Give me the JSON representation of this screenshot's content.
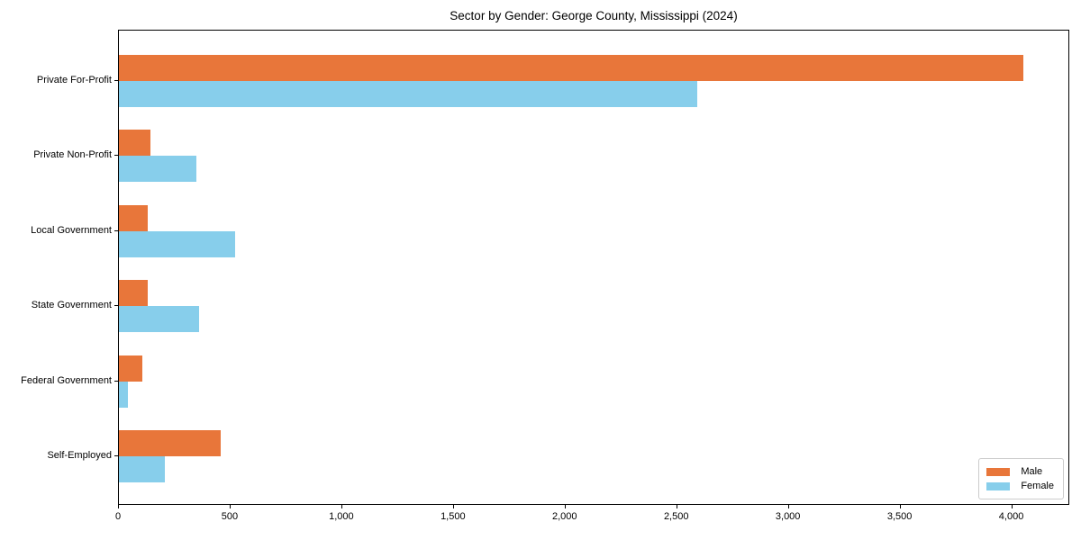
{
  "chart_data": {
    "type": "bar",
    "orientation": "horizontal",
    "title": "Sector by Gender: George County, Mississippi (2024)",
    "categories": [
      "Private For-Profit",
      "Private Non-Profit",
      "Local Government",
      "State Government",
      "Federal Government",
      "Self-Employed"
    ],
    "series": [
      {
        "name": "Male",
        "color": "#e8763a",
        "values": [
          4050,
          140,
          130,
          130,
          105,
          455
        ]
      },
      {
        "name": "Female",
        "color": "#87ceeb",
        "values": [
          2590,
          345,
          520,
          360,
          40,
          205
        ]
      }
    ],
    "xlabel": "",
    "ylabel": "",
    "xlim": [
      0,
      4260
    ],
    "x_ticks": [
      0,
      500,
      1000,
      1500,
      2000,
      2500,
      3000,
      3500,
      4000
    ],
    "x_tick_labels": [
      "0",
      "500",
      "1,000",
      "1,500",
      "2,000",
      "2,500",
      "3,000",
      "3,500",
      "4,000"
    ],
    "grid": false,
    "legend_position": "lower right",
    "frame": true
  }
}
